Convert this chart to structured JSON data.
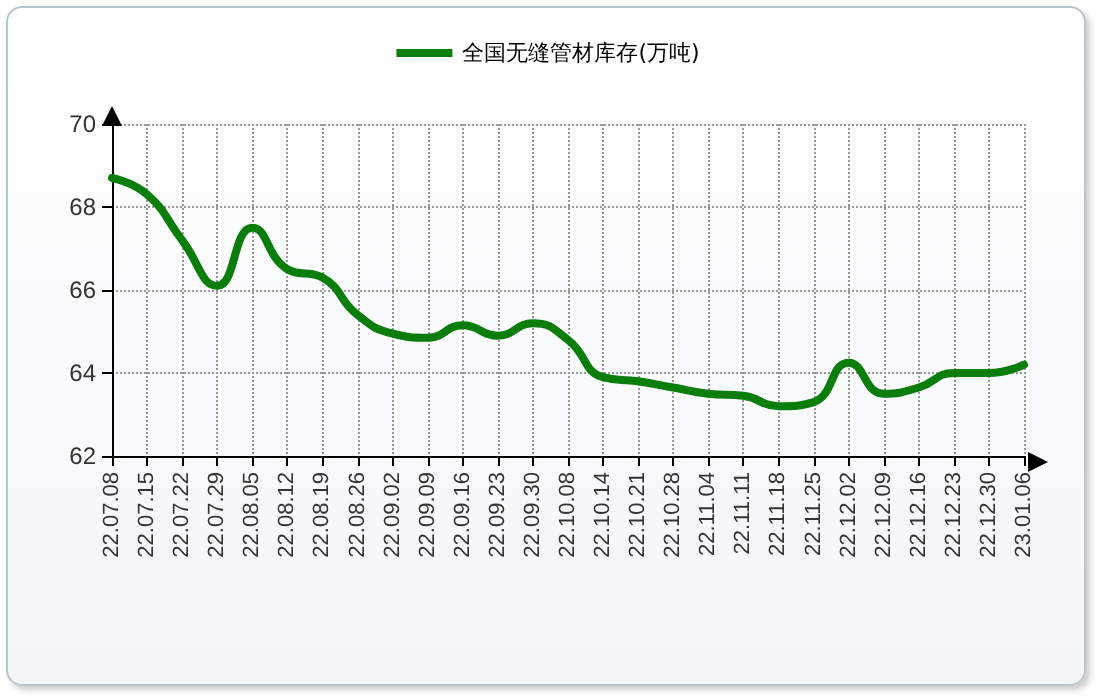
{
  "chart_data": {
    "type": "line",
    "categories": [
      "22.07.08",
      "22.07.15",
      "22.07.22",
      "22.07.29",
      "22.08.05",
      "22.08.12",
      "22.08.19",
      "22.08.26",
      "22.09.02",
      "22.09.09",
      "22.09.16",
      "22.09.23",
      "22.09.30",
      "22.10.08",
      "22.10.14",
      "22.10.21",
      "22.10.28",
      "22.11.04",
      "22.11.11",
      "22.11.18",
      "22.11.25",
      "22.12.02",
      "22.12.09",
      "22.12.16",
      "22.12.23",
      "22.12.30",
      "23.01.06"
    ],
    "series": [
      {
        "name": "全国无缝管材库存(万吨)",
        "color": "#0a7d0a",
        "values": [
          68.7,
          68.3,
          67.2,
          66.1,
          67.5,
          66.5,
          66.3,
          65.4,
          64.95,
          64.85,
          65.15,
          64.9,
          65.2,
          64.8,
          63.9,
          63.8,
          63.65,
          63.5,
          63.45,
          63.2,
          63.3,
          64.25,
          63.5,
          63.65,
          64.0,
          64.0,
          64.2
        ]
      }
    ],
    "ylim": [
      62,
      70
    ],
    "yticks": [
      62,
      64,
      66,
      68,
      70
    ],
    "grid": true,
    "legend": "top",
    "marker": "none",
    "line_style": "solid"
  }
}
